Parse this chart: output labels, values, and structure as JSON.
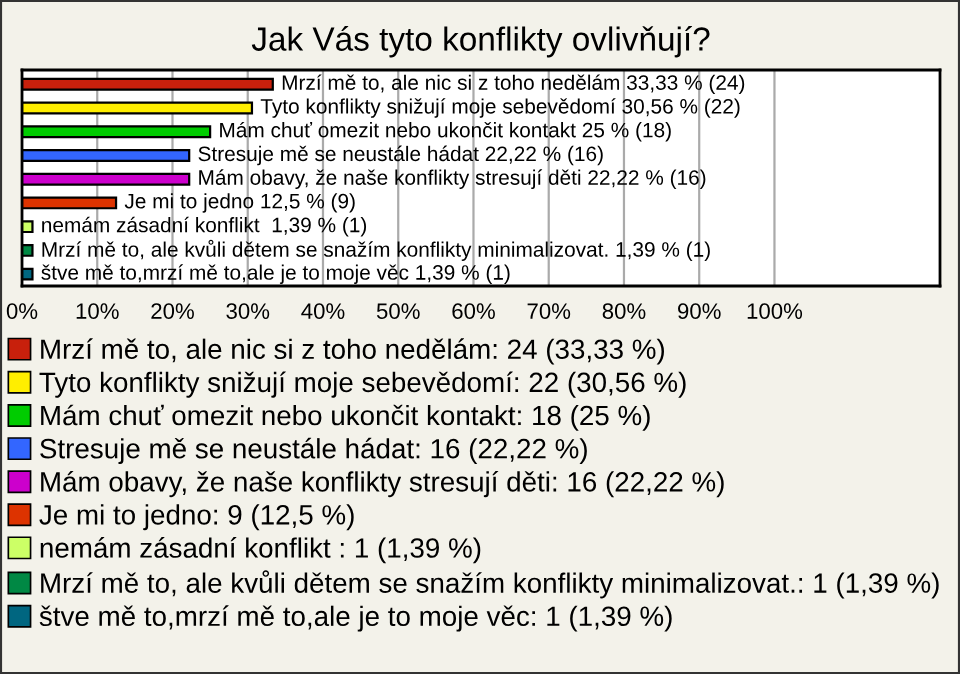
{
  "chart_data": {
    "type": "bar",
    "orientation": "horizontal",
    "title": "Jak Vás tyto konflikty ovlivňují?",
    "categories": [
      null,
      null,
      null,
      null,
      null,
      null,
      null,
      null,
      null
    ],
    "series": [
      {
        "name": "Mrzí mě to, ale nic si z toho nedělám: 24 (33,33 %)",
        "color": "#c8200c",
        "values": [
          33.33,
          null,
          null,
          null,
          null,
          null,
          null,
          null,
          null
        ],
        "value_labels": [
          "Mrzí mě to, ale nic si z toho nedělám 33,33 % (24)",
          null,
          null,
          null,
          null,
          null,
          null,
          null,
          null
        ]
      },
      {
        "name": "Tyto konflikty snižují moje sebevědomí: 22 (30,56 %)",
        "color": "#ffee00",
        "values": [
          null,
          30.56,
          null,
          null,
          null,
          null,
          null,
          null,
          null
        ],
        "value_labels": [
          null,
          "Tyto konflikty snižují moje sebevědomí 30,56 % (22)",
          null,
          null,
          null,
          null,
          null,
          null,
          null
        ]
      },
      {
        "name": "Mám chuť omezit nebo ukončit kontakt: 18 (25 %)",
        "color": "#00cc00",
        "values": [
          null,
          null,
          25,
          null,
          null,
          null,
          null,
          null,
          null
        ],
        "value_labels": [
          null,
          null,
          "Mám chuť omezit nebo ukončit kontakt 25 % (18)",
          null,
          null,
          null,
          null,
          null,
          null
        ]
      },
      {
        "name": "Stresuje mě se neustále hádat: 16 (22,22 %)",
        "color": "#3366ff",
        "values": [
          null,
          null,
          null,
          22.22,
          null,
          null,
          null,
          null,
          null
        ],
        "value_labels": [
          null,
          null,
          null,
          "Stresuje mě se neustále hádat 22,22 % (16)",
          null,
          null,
          null,
          null,
          null
        ]
      },
      {
        "name": "Mám obavy, že naše konflikty stresují děti: 16 (22,22 %)",
        "color": "#cc00cc",
        "values": [
          null,
          null,
          null,
          null,
          22.22,
          null,
          null,
          null,
          null
        ],
        "value_labels": [
          null,
          null,
          null,
          null,
          "Mám obavy, že naše konflikty stresují děti 22,22 % (16)",
          null,
          null,
          null,
          null
        ]
      },
      {
        "name": "Je mi to jedno: 9 (12,5 %)",
        "color": "#dd3300",
        "values": [
          null,
          null,
          null,
          null,
          null,
          12.5,
          null,
          null,
          null
        ],
        "value_labels": [
          null,
          null,
          null,
          null,
          null,
          "Je mi to jedno 12,5 % (9)",
          null,
          null,
          null
        ]
      },
      {
        "name": "nemám zásadní konflikt : 1 (1,39 %)",
        "color": "#ccff66",
        "values": [
          null,
          null,
          null,
          null,
          null,
          null,
          1.39,
          null,
          null
        ],
        "value_labels": [
          null,
          null,
          null,
          null,
          null,
          null,
          "nemám zásadní konflikt  1,39 % (1)",
          null,
          null
        ]
      },
      {
        "name": "Mrzí mě to, ale kvůli dětem se snažím konflikty minimalizovat.: 1 (1,39 %)",
        "color": "#008844",
        "values": [
          null,
          null,
          null,
          null,
          null,
          null,
          null,
          1.39,
          null
        ],
        "value_labels": [
          null,
          null,
          null,
          null,
          null,
          null,
          null,
          "Mrzí mě to, ale kvůli dětem se snažím konflikty minimalizovat. 1,39 % (1)",
          null
        ]
      },
      {
        "name": "štve mě to,mrzí mě to,ale je to moje věc: 1 (1,39 %)",
        "color": "#006680",
        "values": [
          null,
          null,
          null,
          null,
          null,
          null,
          null,
          null,
          1.39
        ],
        "value_labels": [
          null,
          null,
          null,
          null,
          null,
          null,
          null,
          null,
          "štve mě to,mrzí mě to,ale je to moje věc 1,39 % (1)"
        ]
      }
    ],
    "xlim": [
      0,
      122
    ],
    "xticks": [
      {
        "value": 0,
        "label": "0%"
      },
      {
        "value": 10,
        "label": "10%"
      },
      {
        "value": 20,
        "label": "20%"
      },
      {
        "value": 30,
        "label": "30%"
      },
      {
        "value": 40,
        "label": "40%"
      },
      {
        "value": 50,
        "label": "50%"
      },
      {
        "value": 60,
        "label": "60%"
      },
      {
        "value": 70,
        "label": "70%"
      },
      {
        "value": 80,
        "label": "80%"
      },
      {
        "value": 90,
        "label": "90%"
      },
      {
        "value": 100,
        "label": "100%"
      }
    ],
    "grid": "x",
    "legend": "bottom",
    "tick_labels": "x"
  }
}
